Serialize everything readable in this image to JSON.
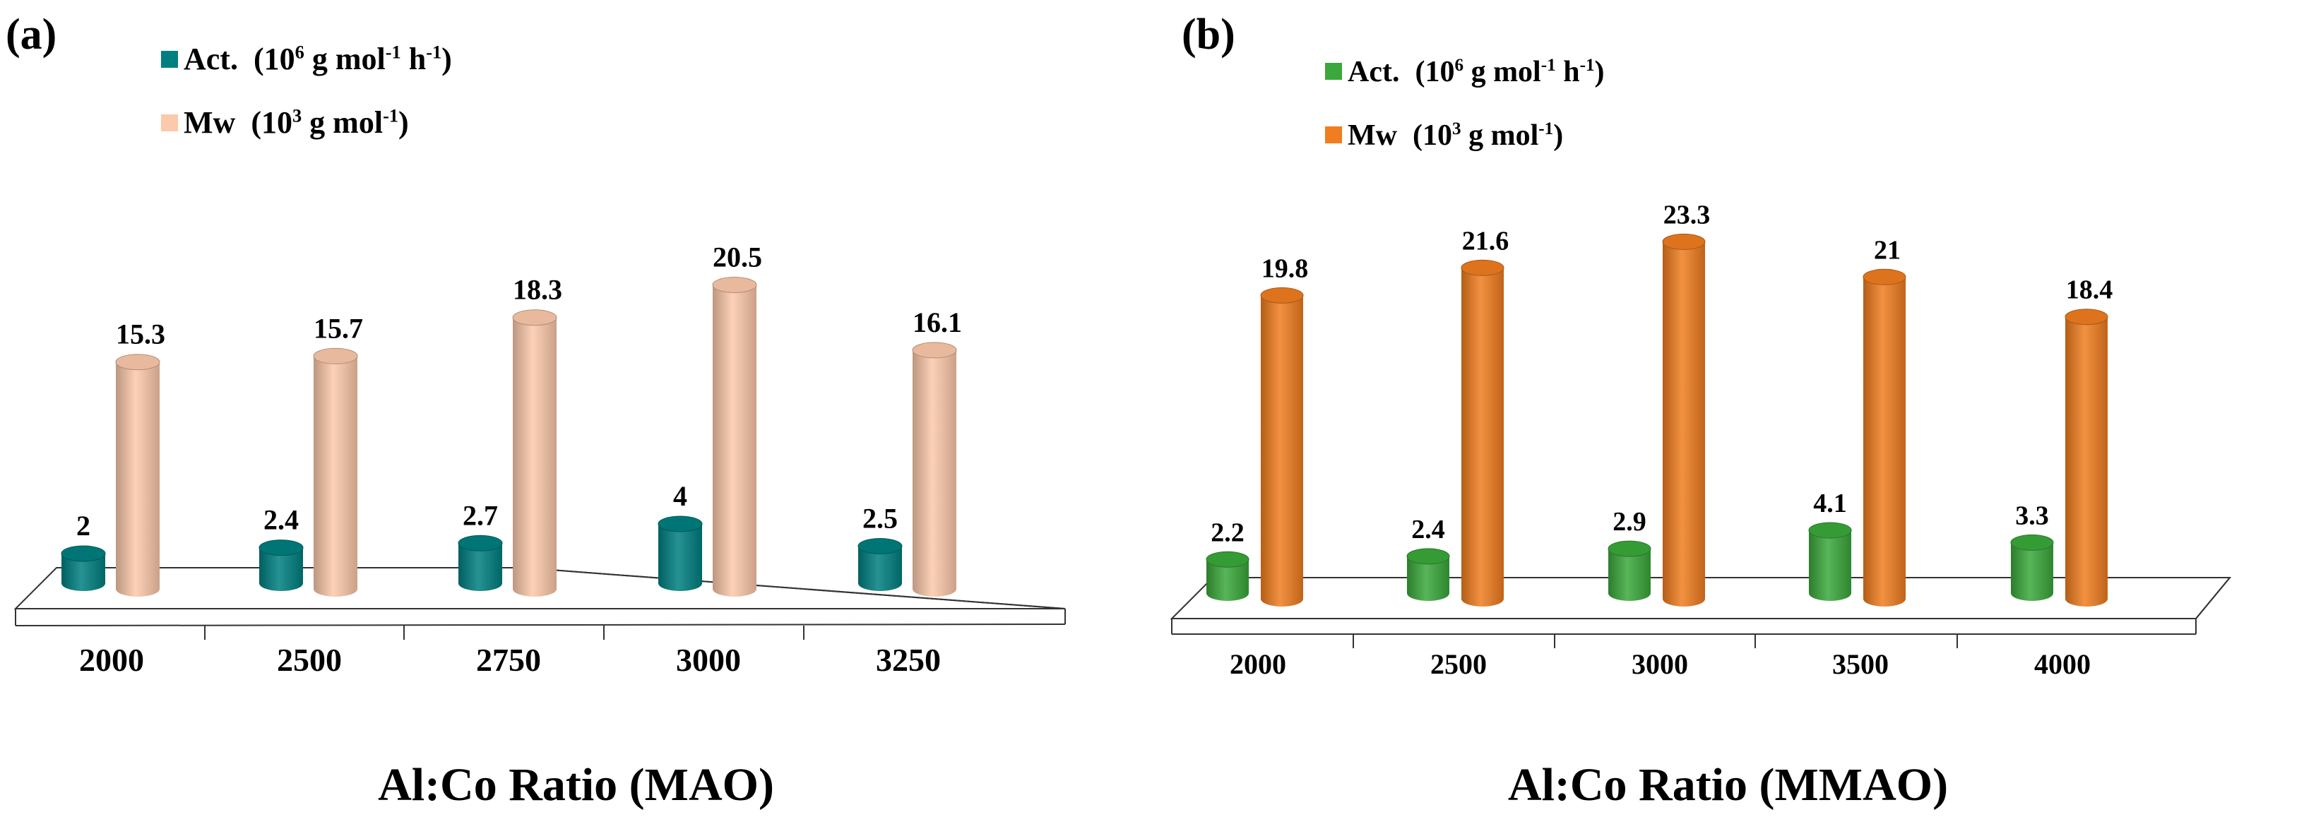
{
  "chart_data": [
    {
      "type": "bar",
      "panel_label": "(a)",
      "categories": [
        "2000",
        "2500",
        "2750",
        "3000",
        "3250"
      ],
      "series": [
        {
          "name": "Act.",
          "unit_base": "(10",
          "unit_exp": "6",
          "unit_mid": " g mol",
          "unit_exp2": "-1",
          "unit_mid2": " h",
          "unit_exp3": "-1",
          "unit_end": ")",
          "values": [
            2,
            2.4,
            2.7,
            4,
            2.5
          ],
          "labels": [
            "2",
            "2.4",
            "2.7",
            "4",
            "2.5"
          ],
          "color": "#007f80"
        },
        {
          "name": "Mw",
          "unit_base": "(10",
          "unit_exp": "3",
          "unit_mid": " g mol",
          "unit_exp2": "-1",
          "unit_mid2": "",
          "unit_exp3": "",
          "unit_end": ")",
          "values": [
            15.3,
            15.7,
            18.3,
            20.5,
            16.1
          ],
          "labels": [
            "15.3",
            "15.7",
            "18.3",
            "20.5",
            "16.1"
          ],
          "color": "#fcc9aa"
        }
      ],
      "xlabel": "Al:Co Ratio (MAO)",
      "ylabel": "",
      "ylim": [
        0,
        25
      ]
    },
    {
      "type": "bar",
      "panel_label": "(b)",
      "categories": [
        "2000",
        "2500",
        "3000",
        "3500",
        "4000"
      ],
      "series": [
        {
          "name": "Act.",
          "unit_base": "(10",
          "unit_exp": "6",
          "unit_mid": " g mol",
          "unit_exp2": "-1",
          "unit_mid2": " h",
          "unit_exp3": "-1",
          "unit_end": ")",
          "values": [
            2.2,
            2.4,
            2.9,
            4.1,
            3.3
          ],
          "labels": [
            "2.2",
            "2.4",
            "2.9",
            "4.1",
            "3.3"
          ],
          "color": "#3aa83a"
        },
        {
          "name": "Mw",
          "unit_base": "(10",
          "unit_exp": "3",
          "unit_mid": " g mol",
          "unit_exp2": "-1",
          "unit_mid2": "",
          "unit_exp3": "",
          "unit_end": ")",
          "values": [
            19.8,
            21.6,
            23.3,
            21,
            18.4
          ],
          "labels": [
            "19.8",
            "21.6",
            "23.3",
            "21",
            "18.4"
          ],
          "color": "#f07d1f"
        }
      ],
      "xlabel": "Al:Co Ratio (MMAO)",
      "ylabel": "",
      "ylim": [
        0,
        25
      ]
    }
  ]
}
